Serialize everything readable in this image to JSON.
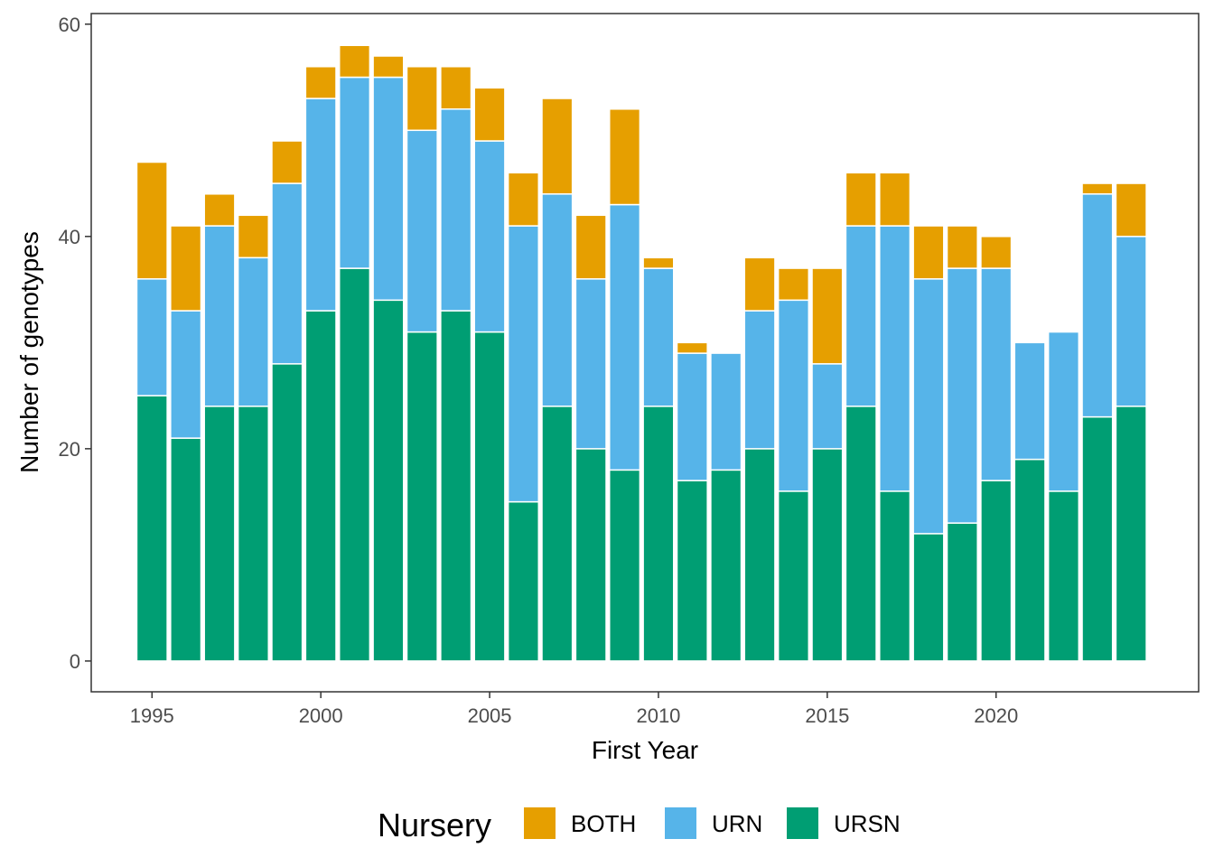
{
  "chart_data": {
    "type": "bar",
    "stacked": true,
    "xlabel": "First Year",
    "ylabel": "Number of genotypes",
    "x": [
      1995,
      1996,
      1997,
      1998,
      1999,
      2000,
      2001,
      2002,
      2003,
      2004,
      2005,
      2006,
      2007,
      2008,
      2009,
      2010,
      2011,
      2012,
      2013,
      2014,
      2015,
      2016,
      2017,
      2018,
      2019,
      2020,
      2021,
      2022,
      2023,
      2024
    ],
    "x_ticks": [
      1995,
      2000,
      2005,
      2010,
      2015,
      2020
    ],
    "y_ticks": [
      0,
      20,
      40,
      60
    ],
    "xlim": [
      1993.2,
      2026.0
    ],
    "ylim": [
      -2.9,
      61
    ],
    "grid": false,
    "series": [
      {
        "name": "URSN",
        "color": "#009E73",
        "values": [
          25,
          21,
          24,
          24,
          28,
          33,
          37,
          34,
          31,
          33,
          31,
          15,
          24,
          20,
          18,
          24,
          17,
          18,
          20,
          16,
          20,
          24,
          16,
          12,
          13,
          17,
          19,
          16,
          23,
          24
        ]
      },
      {
        "name": "URN",
        "color": "#56B4E9",
        "values": [
          11,
          12,
          17,
          14,
          17,
          20,
          18,
          21,
          19,
          19,
          18,
          26,
          20,
          16,
          25,
          13,
          12,
          11,
          13,
          18,
          8,
          17,
          25,
          24,
          24,
          20,
          11,
          15,
          21,
          16
        ]
      },
      {
        "name": "BOTH",
        "color": "#E69F00",
        "values": [
          11,
          8,
          3,
          4,
          4,
          3,
          3,
          2,
          6,
          4,
          5,
          5,
          9,
          6,
          9,
          1,
          1,
          0,
          5,
          3,
          9,
          5,
          5,
          5,
          4,
          3,
          0,
          0,
          1,
          5
        ]
      }
    ],
    "legend": {
      "title": "Nursery",
      "position": "bottom",
      "items": [
        {
          "label": "BOTH",
          "color": "#E69F00"
        },
        {
          "label": "URN",
          "color": "#56B4E9"
        },
        {
          "label": "URSN",
          "color": "#009E73"
        }
      ]
    }
  }
}
